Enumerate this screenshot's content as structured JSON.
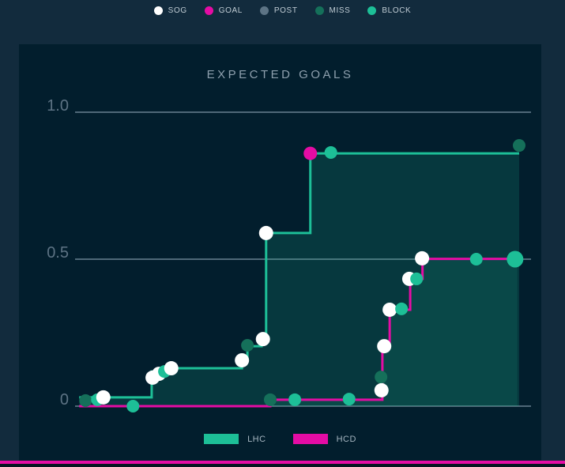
{
  "top_legend": {
    "items": [
      {
        "label": "SOG",
        "color": "#ffffff"
      },
      {
        "label": "GOAL",
        "color": "#e50ca4"
      },
      {
        "label": "POST",
        "color": "#5d7485"
      },
      {
        "label": "MISS",
        "color": "#15705a"
      },
      {
        "label": "BLOCK",
        "color": "#1dbf97"
      }
    ]
  },
  "chart_data": {
    "type": "area",
    "title": "EXPECTED GOALS",
    "subtitle": "",
    "xlabel": "",
    "ylabel": "",
    "ylim": [
      0,
      1.0
    ],
    "grid": "horizontal",
    "x_axis_note": "game time, normalized 0-1, no tick labels shown",
    "yticks": [
      {
        "label": "1.0",
        "value": 1.0
      },
      {
        "label": "0.5",
        "value": 0.5
      },
      {
        "label": "0",
        "value": 0.0
      }
    ],
    "colors": {
      "gridline": "#4f6878",
      "tick_label": "#5d7384",
      "fill_opacity_lhc": 0.17,
      "fill_opacity_hcd": 0.12
    },
    "event_types": {
      "sog": "#ffffff",
      "goal": "#e50ca4",
      "post": "#5d7485",
      "miss": "#15705a",
      "block": "#1dbf97"
    },
    "series": [
      {
        "name": "LHC",
        "color": "#1dbf97",
        "final_value": 0.86,
        "steps": [
          {
            "t": 0.009,
            "v": 0.03
          },
          {
            "t": 0.168,
            "v": 0.118
          },
          {
            "t": 0.208,
            "v": 0.129
          },
          {
            "t": 0.366,
            "v": 0.156
          },
          {
            "t": 0.378,
            "v": 0.204
          },
          {
            "t": 0.409,
            "v": 0.228
          },
          {
            "t": 0.419,
            "v": 0.589
          },
          {
            "t": 0.516,
            "v": 0.86
          },
          {
            "t": 0.974,
            "v": 0.86
          }
        ],
        "events": [
          {
            "t": 0.023,
            "v": 0.019,
            "type": "miss"
          },
          {
            "t": 0.049,
            "v": 0.022,
            "type": "block"
          },
          {
            "t": 0.062,
            "v": 0.03,
            "type": "sog"
          },
          {
            "t": 0.17,
            "v": 0.097,
            "type": "sog"
          },
          {
            "t": 0.184,
            "v": 0.11,
            "type": "sog"
          },
          {
            "t": 0.196,
            "v": 0.118,
            "type": "block"
          },
          {
            "t": 0.211,
            "v": 0.129,
            "type": "sog"
          },
          {
            "t": 0.366,
            "v": 0.156,
            "type": "sog"
          },
          {
            "t": 0.378,
            "v": 0.207,
            "type": "miss"
          },
          {
            "t": 0.412,
            "v": 0.228,
            "type": "sog"
          },
          {
            "t": 0.419,
            "v": 0.589,
            "type": "sog"
          },
          {
            "t": 0.516,
            "v": 0.86,
            "type": "goal"
          },
          {
            "t": 0.561,
            "v": 0.863,
            "type": "block"
          },
          {
            "t": 0.974,
            "v": 0.887,
            "type": "miss"
          }
        ]
      },
      {
        "name": "HCD",
        "color": "#e50ca4",
        "final_value": 0.5,
        "steps": [
          {
            "t": 0.009,
            "v": 0.0
          },
          {
            "t": 0.428,
            "v": 0.022
          },
          {
            "t": 0.674,
            "v": 0.204
          },
          {
            "t": 0.69,
            "v": 0.328
          },
          {
            "t": 0.735,
            "v": 0.433
          },
          {
            "t": 0.762,
            "v": 0.501
          },
          {
            "t": 0.97,
            "v": 0.501
          }
        ],
        "events": [
          {
            "t": 0.127,
            "v": 0.0,
            "type": "block"
          },
          {
            "t": 0.428,
            "v": 0.022,
            "type": "miss"
          },
          {
            "t": 0.482,
            "v": 0.022,
            "type": "block"
          },
          {
            "t": 0.601,
            "v": 0.024,
            "type": "block"
          },
          {
            "t": 0.671,
            "v": 0.099,
            "type": "miss"
          },
          {
            "t": 0.672,
            "v": 0.054,
            "type": "sog"
          },
          {
            "t": 0.678,
            "v": 0.204,
            "type": "sog"
          },
          {
            "t": 0.69,
            "v": 0.328,
            "type": "sog"
          },
          {
            "t": 0.716,
            "v": 0.331,
            "type": "block"
          },
          {
            "t": 0.733,
            "v": 0.433,
            "type": "sog"
          },
          {
            "t": 0.749,
            "v": 0.433,
            "type": "block"
          },
          {
            "t": 0.761,
            "v": 0.503,
            "type": "sog"
          },
          {
            "t": 0.88,
            "v": 0.5,
            "type": "block"
          },
          {
            "t": 0.965,
            "v": 0.5,
            "type": "block",
            "r": 10.5
          }
        ]
      }
    ]
  },
  "bottom_legend": {
    "items": [
      {
        "label": "LHC",
        "color": "#1dbf97"
      },
      {
        "label": "HCD",
        "color": "#e50ca4"
      }
    ]
  }
}
